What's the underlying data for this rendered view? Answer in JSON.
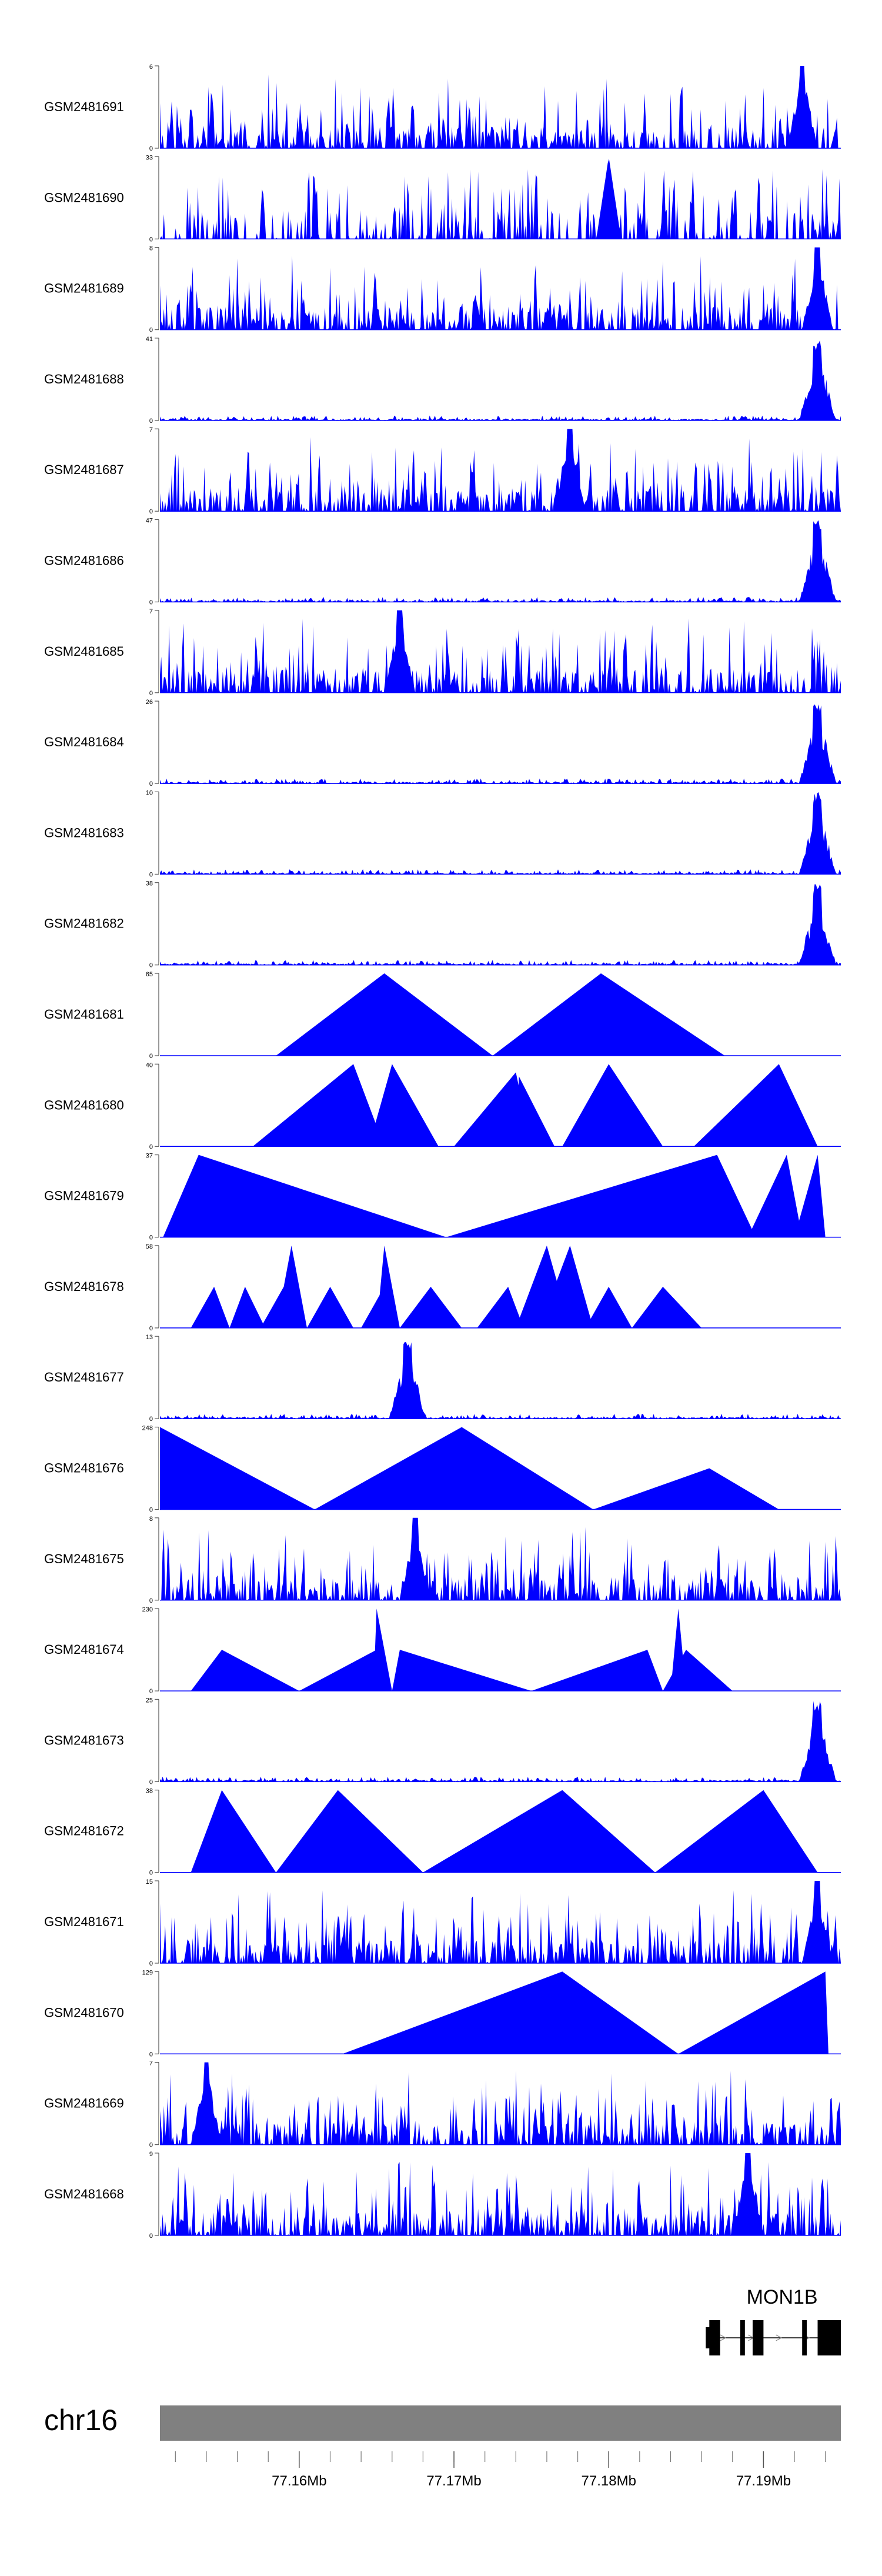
{
  "chart_data": {
    "type": "area",
    "title": "",
    "chromosome": "chr16",
    "gene": "MON1B",
    "x_unit": "Mb",
    "xlim": [
      77.151,
      77.195
    ],
    "x_ticks": [
      77.16,
      77.17,
      77.18,
      77.19
    ],
    "x_tick_labels": [
      "77.16Mb",
      "77.17Mb",
      "77.18Mb",
      "77.19Mb"
    ],
    "tracks": [
      {
        "name": "GSM2481691",
        "ymax": 6,
        "style": "dense",
        "peak": 77.1925,
        "seed": 11
      },
      {
        "name": "GSM2481690",
        "ymax": 33,
        "style": "sparse",
        "peak": 77.18,
        "seed": 12
      },
      {
        "name": "GSM2481689",
        "ymax": 8,
        "style": "dense",
        "peak": 77.1935,
        "seed": 13
      },
      {
        "name": "GSM2481688",
        "ymax": 41,
        "style": "peak",
        "peak": 77.1935,
        "seed": 14
      },
      {
        "name": "GSM2481687",
        "ymax": 7,
        "style": "dense",
        "peak": 77.1775,
        "seed": 15
      },
      {
        "name": "GSM2481686",
        "ymax": 47,
        "style": "peak",
        "peak": 77.1935,
        "seed": 16
      },
      {
        "name": "GSM2481685",
        "ymax": 7,
        "style": "dense",
        "peak": 77.1665,
        "seed": 17
      },
      {
        "name": "GSM2481684",
        "ymax": 26,
        "style": "peak",
        "peak": 77.1935,
        "seed": 18
      },
      {
        "name": "GSM2481683",
        "ymax": 10,
        "style": "peak",
        "peak": 77.1935,
        "seed": 19
      },
      {
        "name": "GSM2481682",
        "ymax": 38,
        "style": "peak",
        "peak": 77.1935,
        "seed": 20
      },
      {
        "name": "GSM2481681",
        "ymax": 65,
        "style": "tri",
        "seed": 21,
        "triangles": [
          [
            77.1585,
            77.1655,
            77.1725,
            1.0
          ],
          [
            77.1725,
            77.1795,
            77.1875,
            1.0
          ]
        ]
      },
      {
        "name": "GSM2481680",
        "ymax": 40,
        "style": "tri",
        "seed": 22,
        "triangles": [
          [
            77.157,
            77.1635,
            77.1655,
            1.0
          ],
          [
            77.1645,
            77.166,
            77.169,
            1.0
          ],
          [
            77.17,
            77.174,
            77.175,
            0.9
          ],
          [
            77.174,
            77.1742,
            77.1765,
            0.85
          ],
          [
            77.177,
            77.18,
            77.1835,
            1.0
          ],
          [
            77.1855,
            77.191,
            77.1935,
            1.0
          ]
        ]
      },
      {
        "name": "GSM2481679",
        "ymax": 37,
        "style": "tri",
        "seed": 23,
        "triangles": [
          [
            77.1512,
            77.1535,
            77.1695,
            1.0
          ],
          [
            77.1695,
            77.187,
            77.1895,
            1.0
          ],
          [
            77.189,
            77.1915,
            77.1925,
            1.0
          ],
          [
            77.192,
            77.1935,
            77.194,
            1.0
          ]
        ]
      },
      {
        "name": "GSM2481678",
        "ymax": 58,
        "style": "tri",
        "seed": 24,
        "triangles": [
          [
            77.153,
            77.1545,
            77.1555,
            0.5
          ],
          [
            77.1555,
            77.1565,
            77.1578,
            0.5
          ],
          [
            77.1575,
            77.159,
            77.16,
            0.5
          ],
          [
            77.1585,
            77.1595,
            77.1605,
            1.0
          ],
          [
            77.1605,
            77.162,
            77.1635,
            0.5
          ],
          [
            77.164,
            77.1655,
            77.1665,
            0.5
          ],
          [
            77.165,
            77.1655,
            77.1665,
            1.0
          ],
          [
            77.1665,
            77.1685,
            77.1705,
            0.5
          ],
          [
            77.1715,
            77.1735,
            77.1745,
            0.5
          ],
          [
            77.174,
            77.176,
            77.1775,
            1.0
          ],
          [
            77.1755,
            77.1775,
            77.179,
            1.0
          ],
          [
            77.1785,
            77.18,
            77.1815,
            0.5
          ],
          [
            77.1815,
            77.1835,
            77.186,
            0.5
          ]
        ]
      },
      {
        "name": "GSM2481677",
        "ymax": 13,
        "style": "peak",
        "peak": 77.167,
        "seed": 25
      },
      {
        "name": "GSM2481676",
        "ymax": 248,
        "style": "tri",
        "seed": 26,
        "triangles": [
          [
            77.151,
            77.151,
            77.161,
            1.0
          ],
          [
            77.161,
            77.1705,
            77.179,
            1.0
          ],
          [
            77.179,
            77.1865,
            77.191,
            0.5
          ]
        ]
      },
      {
        "name": "GSM2481675",
        "ymax": 8,
        "style": "dense",
        "peak": 77.1675,
        "seed": 27
      },
      {
        "name": "GSM2481674",
        "ymax": 230,
        "style": "tri",
        "seed": 28,
        "triangles": [
          [
            77.153,
            77.155,
            77.16,
            0.5
          ],
          [
            77.16,
            77.165,
            77.1655,
            0.5
          ],
          [
            77.1648,
            77.165,
            77.166,
            1.0
          ],
          [
            77.166,
            77.1665,
            77.175,
            0.5
          ],
          [
            77.175,
            77.1825,
            77.1835,
            0.5
          ],
          [
            77.1835,
            77.185,
            77.188,
            0.5
          ],
          [
            77.184,
            77.1845,
            77.185,
            1.0
          ]
        ]
      },
      {
        "name": "GSM2481673",
        "ymax": 25,
        "style": "peak",
        "peak": 77.1935,
        "seed": 29
      },
      {
        "name": "GSM2481672",
        "ymax": 38,
        "style": "tri",
        "seed": 30,
        "triangles": [
          [
            77.153,
            77.155,
            77.1585,
            1.0
          ],
          [
            77.1585,
            77.1625,
            77.168,
            1.0
          ],
          [
            77.168,
            77.177,
            77.183,
            1.0
          ],
          [
            77.183,
            77.19,
            77.1935,
            1.0
          ]
        ]
      },
      {
        "name": "GSM2481671",
        "ymax": 15,
        "style": "dense",
        "peak": 77.1935,
        "seed": 31
      },
      {
        "name": "GSM2481670",
        "ymax": 129,
        "style": "tri",
        "seed": 32,
        "triangles": [
          [
            77.1628,
            77.177,
            77.1845,
            1.0
          ],
          [
            77.1845,
            77.194,
            77.1942,
            1.0
          ]
        ]
      },
      {
        "name": "GSM2481669",
        "ymax": 7,
        "style": "dense",
        "peak": 77.154,
        "seed": 33
      },
      {
        "name": "GSM2481668",
        "ymax": 9,
        "style": "dense",
        "peak": 77.189,
        "seed": 34
      }
    ],
    "gene_model": {
      "name": "MON1B",
      "strand": "+",
      "start": 77.1865,
      "end": 77.195,
      "exons": [
        [
          77.1865,
          77.1872
        ],
        [
          77.1885,
          77.1888
        ],
        [
          77.1893,
          77.19
        ],
        [
          77.1925,
          77.1928
        ],
        [
          77.1935,
          77.195
        ]
      ]
    },
    "colors": {
      "fill": "#0000ff",
      "axis": "#555555",
      "ideogram": "#808080",
      "gene": "#000000"
    }
  }
}
